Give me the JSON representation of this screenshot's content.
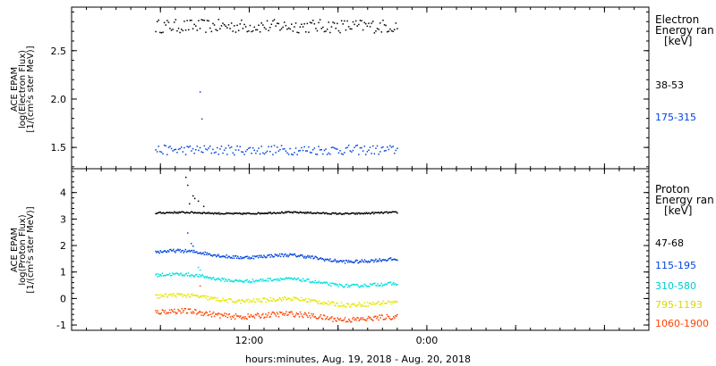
{
  "chart_data": [
    {
      "type": "scatter",
      "panel": "electron",
      "ylabel_lines": [
        "ACE EPAM",
        "log(Electron Flux)",
        "[1/(cm²s ster MeV)]"
      ],
      "ylim": [
        1.28,
        2.95
      ],
      "yticks": [
        1.5,
        2.0,
        2.5
      ],
      "ytick_labels": [
        "1.5",
        "2.0",
        "2.5"
      ],
      "legend_title": [
        "Electron",
        "Energy ran",
        "[keV]"
      ],
      "series": [
        {
          "name": "38-53",
          "color": "#000000",
          "center": 2.76,
          "amp": 0.07,
          "spikes": []
        },
        {
          "name": "175-315",
          "color": "#0044dd",
          "center": 1.48,
          "amp": 0.05,
          "spikes": [
            [
              0.36,
              2.08
            ],
            [
              0.365,
              1.8
            ]
          ]
        }
      ]
    },
    {
      "type": "scatter",
      "panel": "proton",
      "ylabel_lines": [
        "ACE EPAM",
        "log(Proton Flux)",
        "[1/(cm²s ster MeV)]"
      ],
      "ylim": [
        -1.2,
        4.9
      ],
      "yticks": [
        -1,
        0,
        1,
        2,
        3,
        4
      ],
      "ytick_labels": [
        "-1",
        "0",
        "1",
        "2",
        "3",
        "4"
      ],
      "legend_title": [
        "Proton",
        "Energy ran",
        "[keV]"
      ],
      "series": [
        {
          "name": "47-68",
          "color": "#000000",
          "start": 3.25,
          "end": 3.25,
          "amp": 0.03,
          "spikes": [
            [
              0.32,
              4.6
            ],
            [
              0.325,
              4.3
            ],
            [
              0.34,
              3.9
            ],
            [
              0.355,
              3.7
            ],
            [
              0.37,
              3.5
            ],
            [
              0.345,
              3.8
            ],
            [
              0.33,
              3.6
            ]
          ]
        },
        {
          "name": "115-195",
          "color": "#0044dd",
          "start": 1.78,
          "end": 1.42,
          "amp": 0.06,
          "spikes": [
            [
              0.325,
              2.5
            ],
            [
              0.335,
              2.1
            ],
            [
              0.34,
              2.0
            ]
          ]
        },
        {
          "name": "310-580",
          "color": "#00e0e0",
          "start": 0.9,
          "end": 0.5,
          "amp": 0.06,
          "spikes": [
            [
              0.355,
              1.2
            ],
            [
              0.36,
              1.1
            ]
          ]
        },
        {
          "name": "795-1193",
          "color": "#e6e600",
          "start": 0.1,
          "end": -0.2,
          "amp": 0.08,
          "spikes": []
        },
        {
          "name": "1060-1900",
          "color": "#ff4400",
          "start": -0.5,
          "end": -0.75,
          "amp": 0.1,
          "spikes": [
            [
              0.36,
              0.5
            ]
          ]
        }
      ]
    }
  ],
  "x_axis": {
    "ticks": [
      {
        "pos": 0.25,
        "label": ""
      },
      {
        "pos": 0.5,
        "label": "12:00"
      },
      {
        "pos": 0.75,
        "label": ""
      },
      {
        "pos": 1.0,
        "label": "0:00"
      },
      {
        "pos": 1.25,
        "label": ""
      },
      {
        "pos": 1.5,
        "label": ""
      }
    ],
    "range_days": [
      0,
      1.625
    ],
    "data_start_day": 0.235,
    "data_end_day": 0.915,
    "title": "hours:minutes, Aug. 19, 2018 - Aug. 20, 2018"
  }
}
